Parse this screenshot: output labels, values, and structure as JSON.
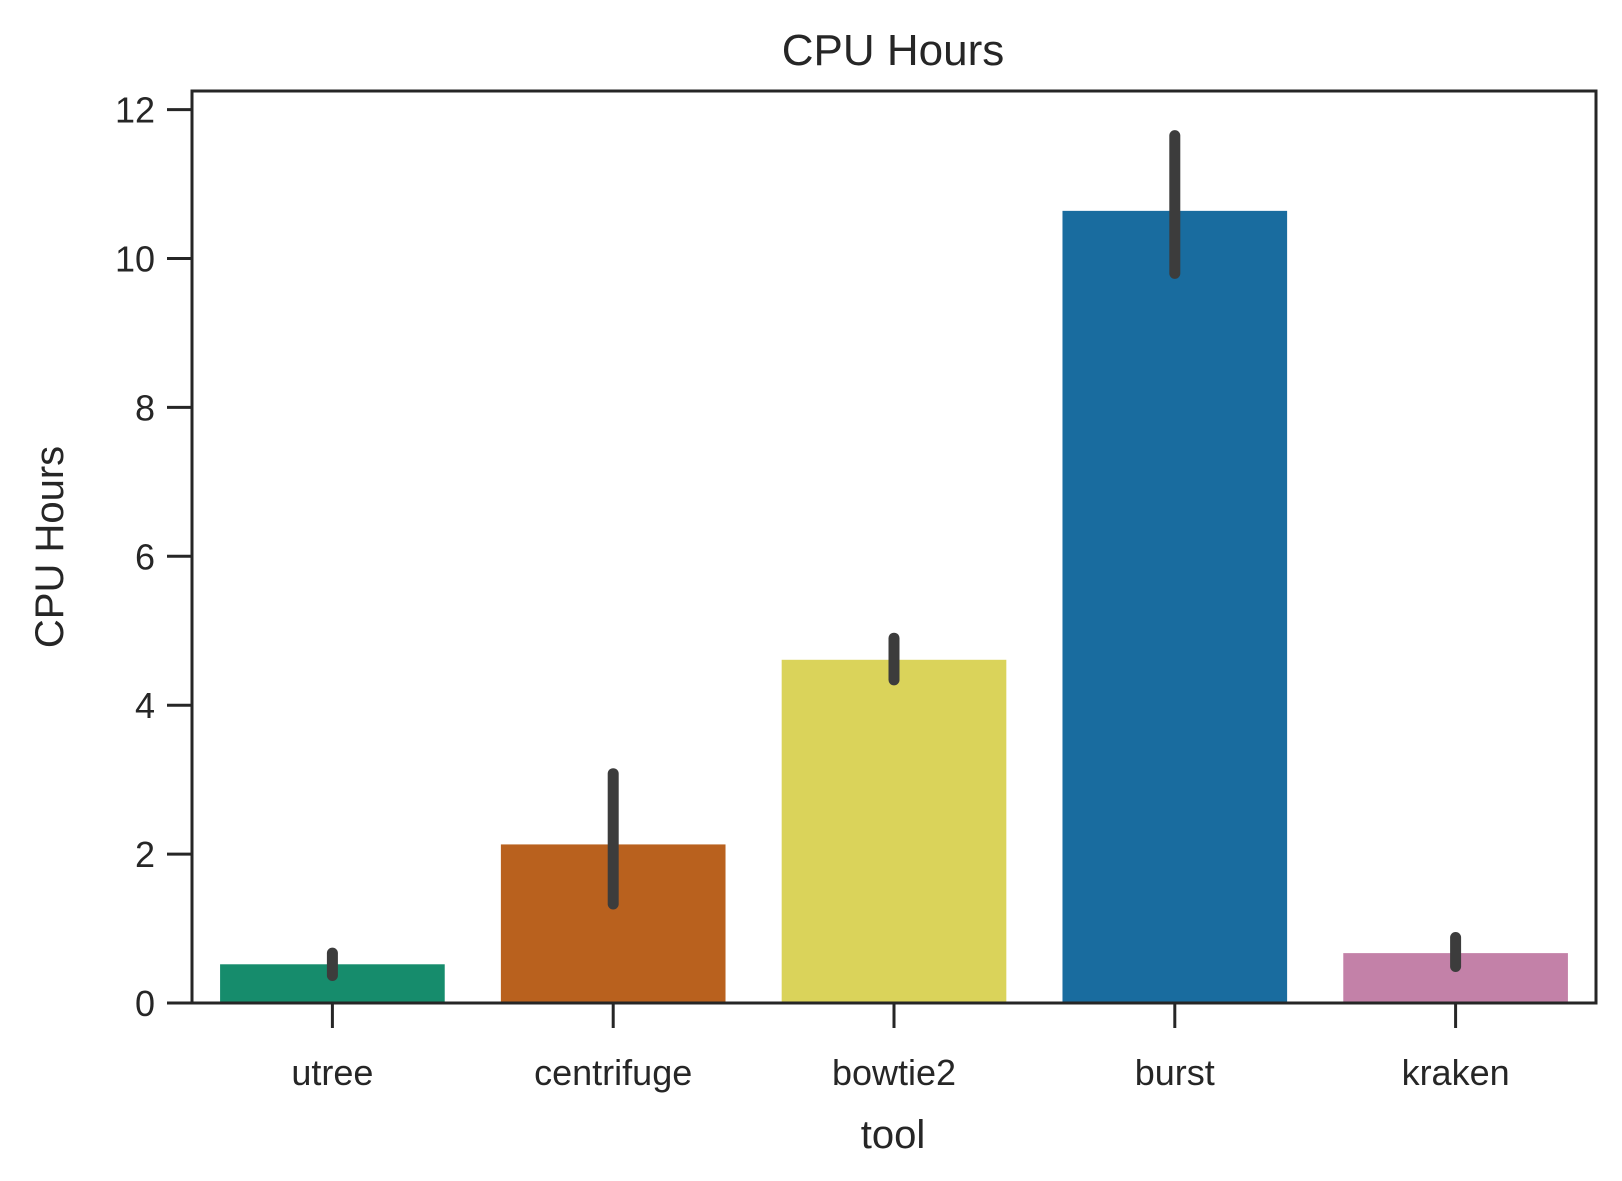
{
  "chart_data": {
    "type": "bar",
    "title": "CPU Hours",
    "xlabel": "tool",
    "ylabel": "CPU Hours",
    "categories": [
      "utree",
      "centrifuge",
      "bowtie2",
      "burst",
      "kraken"
    ],
    "values": [
      0.52,
      2.13,
      4.61,
      10.64,
      0.67
    ],
    "error_bars": [
      {
        "low": 0.37,
        "high": 0.67
      },
      {
        "low": 1.33,
        "high": 3.08
      },
      {
        "low": 4.34,
        "high": 4.9
      },
      {
        "low": 9.8,
        "high": 11.65
      },
      {
        "low": 0.49,
        "high": 0.88
      }
    ],
    "colors": [
      "#168C6C",
      "#B9611E",
      "#DAD35A",
      "#196C9F",
      "#C381A8"
    ],
    "error_color": "#3c3c3c",
    "ylim": [
      0,
      12.25
    ],
    "yticks": [
      0,
      2,
      4,
      6,
      8,
      10,
      12
    ],
    "grid": false,
    "legend": "none"
  }
}
